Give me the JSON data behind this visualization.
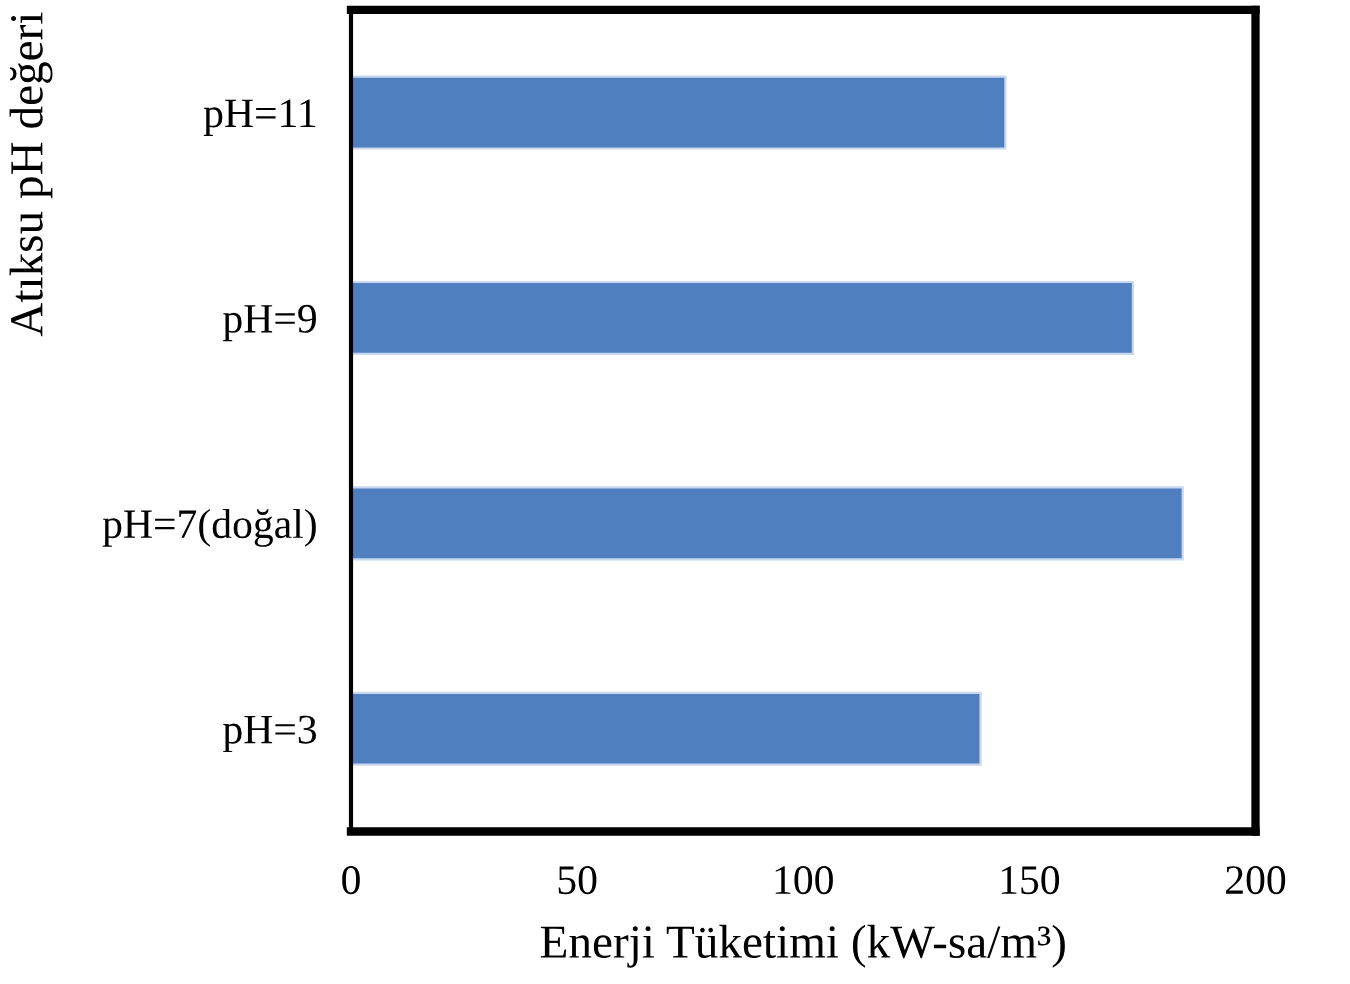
{
  "chart_data": {
    "type": "bar",
    "orientation": "horizontal",
    "xlabel": "Enerji Tüketimi (kW-sa/m³)",
    "ylabel": "Atıksu pH değeri",
    "categories": [
      "pH=11",
      "pH=9",
      "pH=7(doğal)",
      "pH=3"
    ],
    "values": [
      144.7,
      172.9,
      183.9,
      139.2
    ],
    "color": "#4f7fbf",
    "xlim": [
      0,
      200
    ],
    "xticks": [
      0,
      50,
      100,
      150,
      200
    ],
    "grid": false
  }
}
